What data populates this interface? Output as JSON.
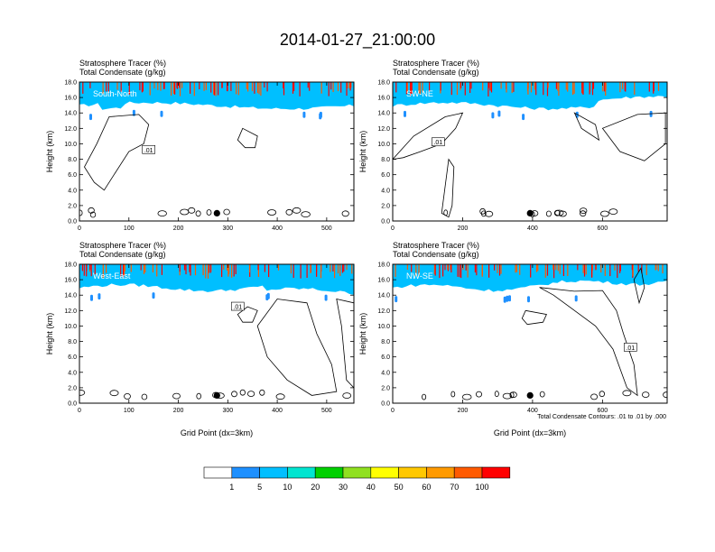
{
  "main_title": "2014-01-27_21:00:00",
  "chart_data": [
    {
      "type": "heatmap",
      "title_left_1": "Stratosphere Tracer   (%)",
      "title_left_2": "Total Condensate   (g/kg)",
      "inset_label": "South-North",
      "ylabel": "Height (km)",
      "xlabel": "",
      "xlim": [
        0,
        555
      ],
      "ylim": [
        0,
        18
      ],
      "xticks": [
        0,
        100,
        200,
        300,
        400,
        500
      ],
      "yticks": [
        0.0,
        2.0,
        4.0,
        6.0,
        8.0,
        10.0,
        12.0,
        14.0,
        16.0,
        18.0
      ],
      "contour_label": ".01",
      "marker": {
        "x": 278,
        "y": 1.0
      }
    },
    {
      "type": "heatmap",
      "title_left_1": "Stratosphere Tracer   (%)",
      "title_left_2": "Total Condensate   (g/kg)",
      "inset_label": "SW-NE",
      "ylabel": "Height (km)",
      "xlabel": "",
      "xlim": [
        0,
        785
      ],
      "ylim": [
        0,
        18
      ],
      "xticks": [
        0,
        200,
        400,
        600
      ],
      "yticks": [
        0.0,
        2.0,
        4.0,
        6.0,
        8.0,
        10.0,
        12.0,
        14.0,
        16.0,
        18.0
      ],
      "contour_label": ".01",
      "marker": {
        "x": 393,
        "y": 1.0
      }
    },
    {
      "type": "heatmap",
      "title_left_1": "Stratosphere Tracer   (%)",
      "title_left_2": "Total Condensate   (g/kg)",
      "inset_label": "West-East",
      "ylabel": "Height (km)",
      "xlabel": "Grid Point (dx=3km)",
      "xlim": [
        0,
        555
      ],
      "ylim": [
        0,
        18
      ],
      "xticks": [
        0,
        100,
        200,
        300,
        400,
        500
      ],
      "yticks": [
        0.0,
        2.0,
        4.0,
        6.0,
        8.0,
        10.0,
        12.0,
        14.0,
        16.0,
        18.0
      ],
      "contour_label": ".01",
      "marker": {
        "x": 278,
        "y": 1.0
      }
    },
    {
      "type": "heatmap",
      "title_left_1": "Stratosphere Tracer   (%)",
      "title_left_2": "Total Condensate   (g/kg)",
      "inset_label": "NW-SE",
      "ylabel": "Height (km)",
      "xlabel": "Grid Point (dx=3km)",
      "xlim": [
        0,
        785
      ],
      "ylim": [
        0,
        18
      ],
      "xticks": [
        0,
        200,
        400,
        600
      ],
      "yticks": [
        0.0,
        2.0,
        4.0,
        6.0,
        8.0,
        10.0,
        12.0,
        14.0,
        16.0,
        18.0
      ],
      "contour_label": ".01",
      "marker": {
        "x": 393,
        "y": 1.0
      },
      "contour_note": "Total Condensate Contours: .01 to .01 by .000"
    }
  ],
  "colorbar": {
    "levels": [
      "1",
      "5",
      "10",
      "20",
      "30",
      "40",
      "50",
      "60",
      "70",
      "100"
    ],
    "colors": [
      "#ffffff",
      "#1e90ff",
      "#00bfff",
      "#00e5d0",
      "#00d000",
      "#90e020",
      "#ffff00",
      "#ffc800",
      "#ff9a00",
      "#ff5a00",
      "#ff0000"
    ]
  }
}
